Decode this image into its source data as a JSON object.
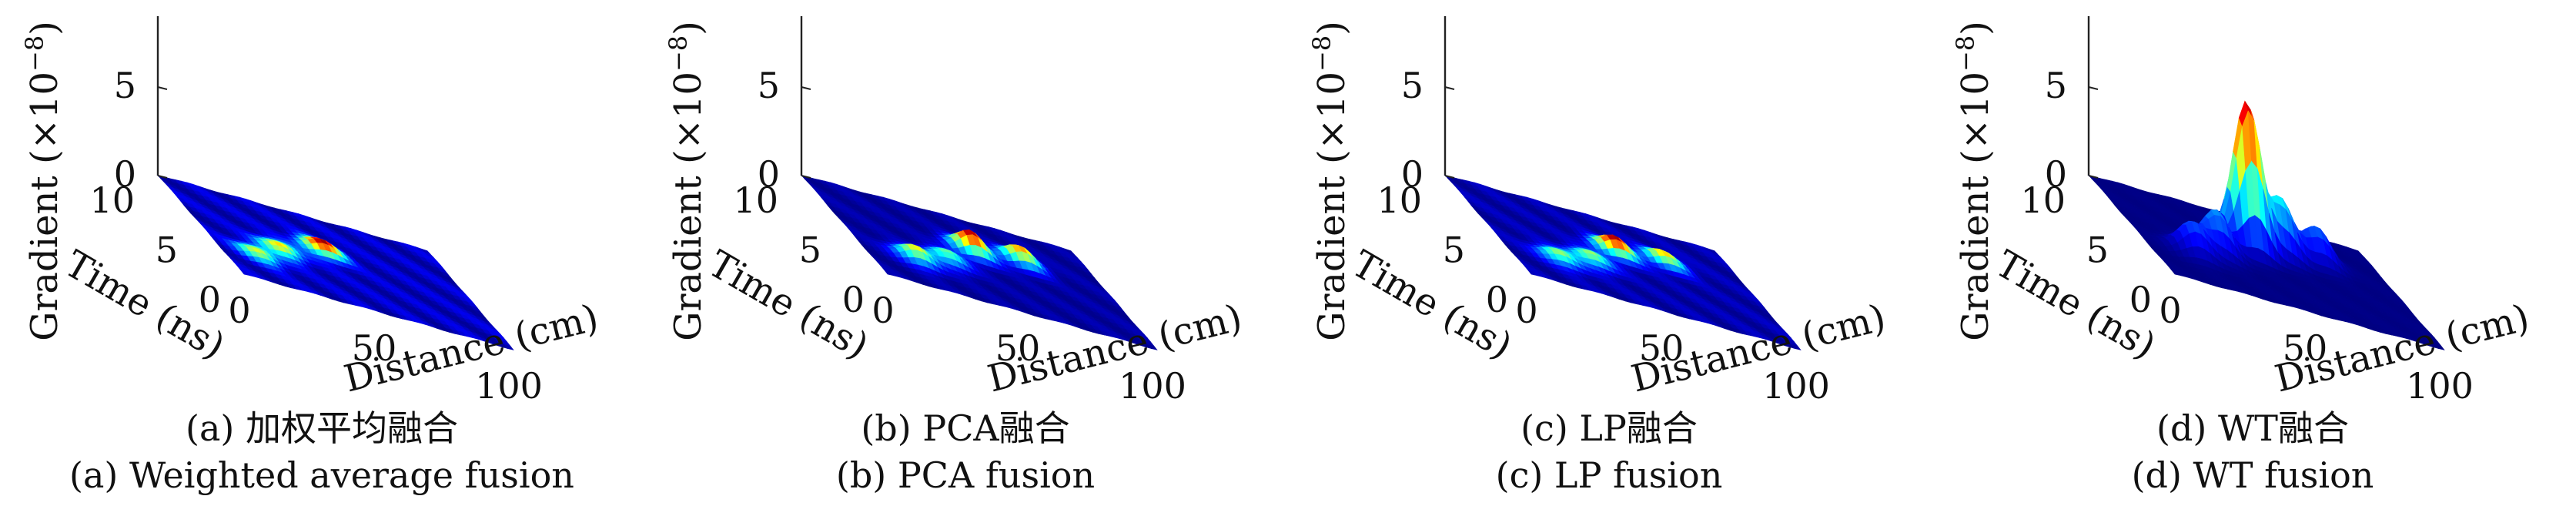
{
  "chart_data": [
    {
      "type": "surface",
      "caption_cn": "(a) 加权平均融合",
      "caption_en": "(a) Weighted average fusion",
      "zlabel": "Gradient (×10",
      "zlabel_exp": "−8",
      "zlabel_close": ")",
      "ylabel": "Time (ns)",
      "xlabel": "Distance (cm)",
      "z_ticks": [
        "0",
        "5"
      ],
      "y_ticks": [
        "10",
        "5",
        "0"
      ],
      "x_ticks": [
        "0",
        "50",
        "100"
      ],
      "zlim": [
        0,
        9
      ],
      "peaks": [
        {
          "distance": 48,
          "time": 6.0,
          "height": 0.6
        },
        {
          "distance": 28,
          "time": 4.5,
          "height": 0.4
        },
        {
          "distance": 15,
          "time": 3.0,
          "height": 0.35
        }
      ]
    },
    {
      "type": "surface",
      "caption_cn": "(b) PCA融合",
      "caption_en": "(b) PCA fusion",
      "zlabel": "Gradient (×10",
      "zlabel_exp": "−8",
      "zlabel_close": ")",
      "ylabel": "Time (ns)",
      "xlabel": "Distance (cm)",
      "z_ticks": [
        "0",
        "5"
      ],
      "y_ticks": [
        "10",
        "5",
        "0"
      ],
      "x_ticks": [
        "0",
        "50",
        "100"
      ],
      "zlim": [
        0,
        9
      ],
      "peaks": [
        {
          "distance": 50,
          "time": 6.0,
          "height": 1.2
        },
        {
          "distance": 70,
          "time": 6.5,
          "height": 0.9
        },
        {
          "distance": 20,
          "time": 3.0,
          "height": 0.8
        },
        {
          "distance": 35,
          "time": 4.0,
          "height": 0.6
        }
      ]
    },
    {
      "type": "surface",
      "caption_cn": "(c) LP融合",
      "caption_en": "(c) LP fusion",
      "zlabel": "Gradient (×10",
      "zlabel_exp": "−8",
      "zlabel_close": ")",
      "ylabel": "Time (ns)",
      "xlabel": "Distance (cm)",
      "z_ticks": [
        "0",
        "5"
      ],
      "y_ticks": [
        "10",
        "5",
        "0"
      ],
      "x_ticks": [
        "0",
        "50",
        "100"
      ],
      "zlim": [
        0,
        9
      ],
      "peaks": [
        {
          "distance": 50,
          "time": 6.0,
          "height": 0.9
        },
        {
          "distance": 70,
          "time": 6.5,
          "height": 0.6
        },
        {
          "distance": 20,
          "time": 3.0,
          "height": 0.5
        },
        {
          "distance": 35,
          "time": 4.0,
          "height": 0.5
        }
      ]
    },
    {
      "type": "surface",
      "caption_cn": "(d) WT融合",
      "caption_en": "(d) WT fusion",
      "zlabel": "Gradient (×10",
      "zlabel_exp": "−8",
      "zlabel_close": ")",
      "ylabel": "Time (ns)",
      "xlabel": "Distance (cm)",
      "z_ticks": [
        "0",
        "5"
      ],
      "y_ticks": [
        "10",
        "5",
        "0"
      ],
      "x_ticks": [
        "0",
        "50",
        "100"
      ],
      "zlim": [
        0,
        9
      ],
      "peaks": [
        {
          "distance": 46,
          "time": 6.0,
          "height": 8.5
        },
        {
          "distance": 60,
          "time": 6.5,
          "height": 3.2
        },
        {
          "distance": 30,
          "time": 4.5,
          "height": 2.4
        },
        {
          "distance": 18,
          "time": 3.5,
          "height": 1.8
        },
        {
          "distance": 75,
          "time": 7.0,
          "height": 2.0
        }
      ]
    }
  ]
}
